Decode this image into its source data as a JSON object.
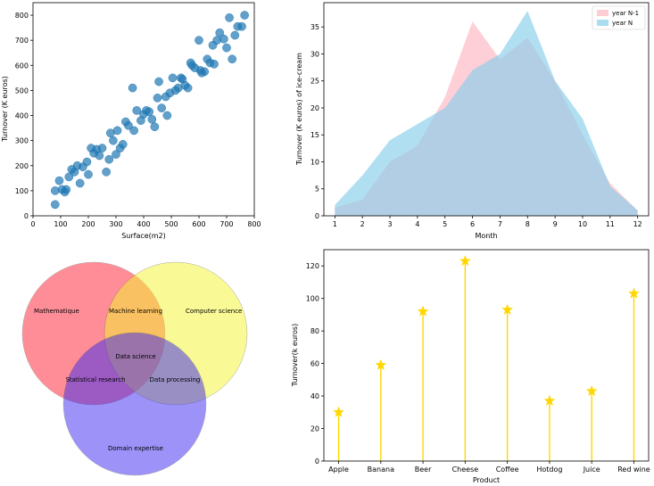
{
  "chart_data": [
    {
      "type": "scatter",
      "xlabel": "Surface(m2)",
      "ylabel": "Turnover (K euros)",
      "xlim": [
        0,
        800
      ],
      "ylim": [
        0,
        850
      ],
      "xticks": [
        0,
        100,
        200,
        300,
        400,
        500,
        600,
        700,
        800
      ],
      "yticks": [
        0,
        100,
        200,
        300,
        400,
        500,
        600,
        700,
        800
      ],
      "color": "#1f77b4",
      "points": [
        [
          80,
          45
        ],
        [
          80,
          100
        ],
        [
          95,
          140
        ],
        [
          105,
          105
        ],
        [
          115,
          95
        ],
        [
          120,
          105
        ],
        [
          130,
          155
        ],
        [
          140,
          185
        ],
        [
          150,
          175
        ],
        [
          160,
          200
        ],
        [
          170,
          130
        ],
        [
          180,
          195
        ],
        [
          195,
          215
        ],
        [
          200,
          165
        ],
        [
          210,
          270
        ],
        [
          220,
          250
        ],
        [
          230,
          265
        ],
        [
          240,
          240
        ],
        [
          250,
          270
        ],
        [
          265,
          175
        ],
        [
          275,
          225
        ],
        [
          280,
          330
        ],
        [
          290,
          300
        ],
        [
          300,
          245
        ],
        [
          305,
          340
        ],
        [
          315,
          270
        ],
        [
          325,
          285
        ],
        [
          335,
          375
        ],
        [
          345,
          360
        ],
        [
          360,
          510
        ],
        [
          365,
          340
        ],
        [
          375,
          420
        ],
        [
          390,
          380
        ],
        [
          400,
          405
        ],
        [
          410,
          420
        ],
        [
          420,
          415
        ],
        [
          430,
          385
        ],
        [
          440,
          355
        ],
        [
          450,
          470
        ],
        [
          455,
          535
        ],
        [
          465,
          430
        ],
        [
          480,
          475
        ],
        [
          485,
          400
        ],
        [
          495,
          490
        ],
        [
          505,
          550
        ],
        [
          515,
          500
        ],
        [
          525,
          510
        ],
        [
          535,
          550
        ],
        [
          540,
          545
        ],
        [
          550,
          520
        ],
        [
          560,
          510
        ],
        [
          570,
          610
        ],
        [
          575,
          600
        ],
        [
          585,
          590
        ],
        [
          600,
          700
        ],
        [
          605,
          580
        ],
        [
          610,
          570
        ],
        [
          620,
          575
        ],
        [
          630,
          625
        ],
        [
          640,
          610
        ],
        [
          650,
          680
        ],
        [
          655,
          605
        ],
        [
          665,
          700
        ],
        [
          675,
          730
        ],
        [
          690,
          705
        ],
        [
          700,
          670
        ],
        [
          710,
          790
        ],
        [
          720,
          625
        ],
        [
          730,
          720
        ],
        [
          740,
          755
        ],
        [
          755,
          755
        ],
        [
          765,
          800
        ]
      ]
    },
    {
      "type": "area",
      "xlabel": "Month",
      "ylabel": "Turnover (K euros) of ice-cream",
      "xlim": [
        0.6,
        12.4
      ],
      "ylim": [
        0,
        39.5
      ],
      "x": [
        1,
        2,
        3,
        4,
        5,
        6,
        7,
        8,
        9,
        10,
        11,
        12
      ],
      "yticks": [
        0,
        5,
        10,
        15,
        20,
        25,
        30,
        35
      ],
      "legend_position": "top-right",
      "series": [
        {
          "name": "year N-1",
          "color": "#ffb6c1",
          "values": [
            1.5,
            3,
            10,
            13,
            22,
            36,
            29,
            33,
            25,
            15,
            6,
            1
          ]
        },
        {
          "name": "year N",
          "color": "#87ceeb",
          "values": [
            2,
            7.5,
            14,
            17,
            20,
            27,
            30,
            38,
            25,
            18,
            5.5,
            1
          ]
        }
      ]
    },
    {
      "type": "venn",
      "sets": [
        {
          "label": "Mathematique",
          "color": "#ff1e32"
        },
        {
          "label": "Computer science",
          "color": "#f5f52d"
        },
        {
          "label": "Domain expertise",
          "color": "#3c28f0"
        }
      ],
      "intersections": {
        "ab": "Machine learning",
        "ac": "Statistical research",
        "bc": "Data processing",
        "abc": "Data science"
      }
    },
    {
      "type": "lollipop",
      "xlabel": "Product",
      "ylabel": "Turnover(k euros)",
      "ylim": [
        0,
        130
      ],
      "yticks": [
        0,
        20,
        40,
        60,
        80,
        100,
        120
      ],
      "color": "#ffd700",
      "categories": [
        "Apple",
        "Banana",
        "Beer",
        "Cheese",
        "Coffee",
        "Hotdog",
        "Juice",
        "Red wine"
      ],
      "values": [
        30,
        59,
        92,
        123,
        93,
        37,
        43,
        103
      ]
    }
  ]
}
